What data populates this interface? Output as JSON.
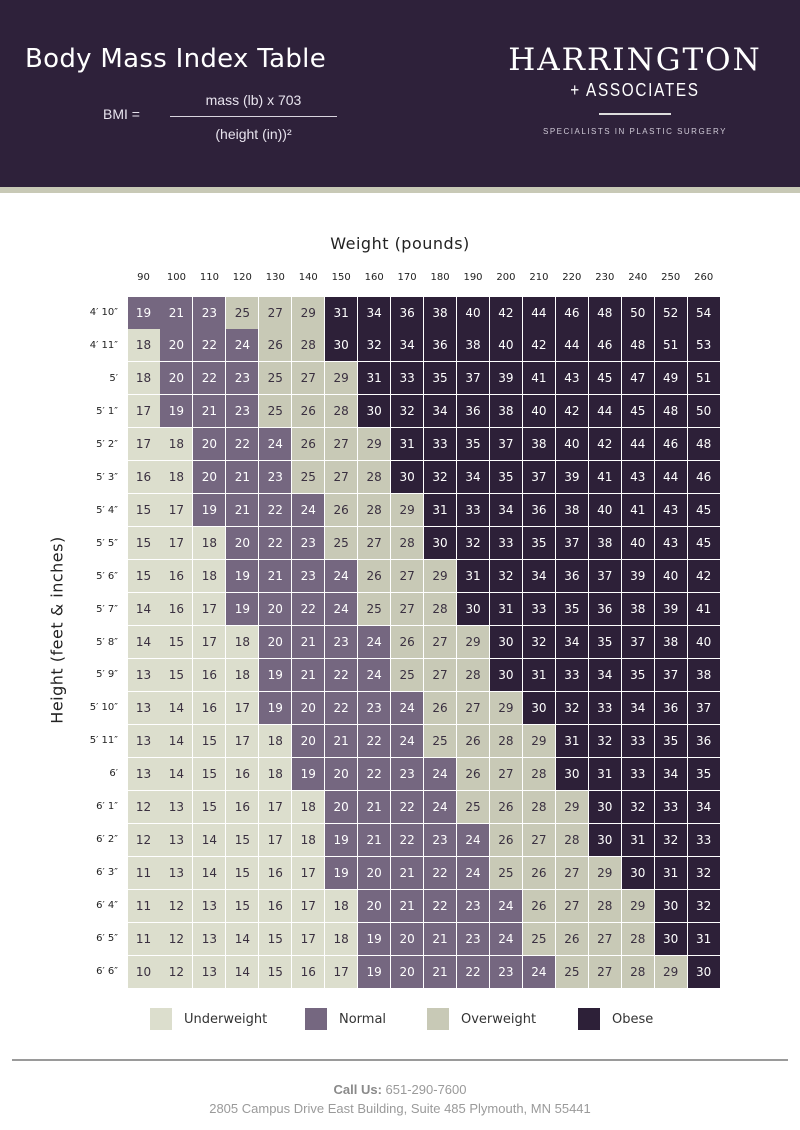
{
  "header": {
    "title": "Body Mass Index Table",
    "formula": {
      "lhs": "BMI =",
      "numerator": "mass (lb) x 703",
      "denominator": "(height (in))²"
    },
    "logo": {
      "name": "HARRINGTON",
      "sub": "+ ASSOCIATES",
      "tagline": "SPECIALISTS IN PLASTIC SURGERY"
    }
  },
  "axes": {
    "x_title": "Weight (pounds)",
    "y_title": "Height (feet & inches)"
  },
  "colors": {
    "underweight": "#dcdecd",
    "normal": "#756780",
    "overweight": "#c8c9b6",
    "obese": "#2d2038",
    "header": "#2e213a"
  },
  "chart_data": {
    "type": "table",
    "title": "Body Mass Index Table",
    "xlabel": "Weight (pounds)",
    "ylabel": "Height (feet & inches)",
    "weights": [
      "90",
      "100",
      "110",
      "120",
      "130",
      "140",
      "150",
      "160",
      "170",
      "180",
      "190",
      "200",
      "210",
      "220",
      "230",
      "240",
      "250",
      "260"
    ],
    "heights": [
      "4′ 10″",
      "4′ 11″",
      "5′",
      "5′ 1″",
      "5′ 2″",
      "5′ 3″",
      "5′ 4″",
      "5′ 5″",
      "5′ 6″",
      "5′ 7″",
      "5′ 8″",
      "5′ 9″",
      "5′ 10″",
      "5′ 11″",
      "6′",
      "6′ 1″",
      "6′ 2″",
      "6′ 3″",
      "6′ 4″",
      "6′ 5″",
      "6′ 6″"
    ],
    "values": [
      [
        19,
        21,
        23,
        25,
        27,
        29,
        31,
        34,
        36,
        38,
        40,
        42,
        44,
        46,
        48,
        50,
        52,
        54
      ],
      [
        18,
        20,
        22,
        24,
        26,
        28,
        30,
        32,
        34,
        36,
        38,
        40,
        42,
        44,
        46,
        48,
        51,
        53
      ],
      [
        18,
        20,
        22,
        23,
        25,
        27,
        29,
        31,
        33,
        35,
        37,
        39,
        41,
        43,
        45,
        47,
        49,
        51
      ],
      [
        17,
        19,
        21,
        23,
        25,
        26,
        28,
        30,
        32,
        34,
        36,
        38,
        40,
        42,
        44,
        45,
        48,
        50
      ],
      [
        17,
        18,
        20,
        22,
        24,
        26,
        27,
        29,
        31,
        33,
        35,
        37,
        38,
        40,
        42,
        44,
        46,
        48
      ],
      [
        16,
        18,
        20,
        21,
        23,
        25,
        27,
        28,
        30,
        32,
        34,
        35,
        37,
        39,
        41,
        43,
        44,
        46
      ],
      [
        15,
        17,
        19,
        21,
        22,
        24,
        26,
        28,
        29,
        31,
        33,
        34,
        36,
        38,
        40,
        41,
        43,
        45
      ],
      [
        15,
        17,
        18,
        20,
        22,
        23,
        25,
        27,
        28,
        30,
        32,
        33,
        35,
        37,
        38,
        40,
        43,
        45
      ],
      [
        15,
        16,
        18,
        19,
        21,
        23,
        24,
        26,
        27,
        29,
        31,
        32,
        34,
        36,
        37,
        39,
        40,
        42
      ],
      [
        14,
        16,
        17,
        19,
        20,
        22,
        24,
        25,
        27,
        28,
        30,
        31,
        33,
        35,
        36,
        38,
        39,
        41
      ],
      [
        14,
        15,
        17,
        18,
        20,
        21,
        23,
        24,
        26,
        27,
        29,
        30,
        32,
        34,
        35,
        37,
        38,
        40
      ],
      [
        13,
        15,
        16,
        18,
        19,
        21,
        22,
        24,
        25,
        27,
        28,
        30,
        31,
        33,
        34,
        35,
        37,
        38
      ],
      [
        13,
        14,
        16,
        17,
        19,
        20,
        22,
        23,
        24,
        26,
        27,
        29,
        30,
        32,
        33,
        34,
        36,
        37
      ],
      [
        13,
        14,
        15,
        17,
        18,
        20,
        21,
        22,
        24,
        25,
        26,
        28,
        29,
        31,
        32,
        33,
        35,
        36
      ],
      [
        13,
        14,
        15,
        16,
        18,
        19,
        20,
        22,
        23,
        24,
        26,
        27,
        28,
        30,
        31,
        33,
        34,
        35
      ],
      [
        12,
        13,
        15,
        16,
        17,
        18,
        20,
        21,
        22,
        24,
        25,
        26,
        28,
        29,
        30,
        32,
        33,
        34
      ],
      [
        12,
        13,
        14,
        15,
        17,
        18,
        19,
        21,
        22,
        23,
        24,
        26,
        27,
        28,
        30,
        31,
        32,
        33
      ],
      [
        11,
        13,
        14,
        15,
        16,
        17,
        19,
        20,
        21,
        22,
        24,
        25,
        26,
        27,
        29,
        30,
        31,
        32
      ],
      [
        11,
        12,
        13,
        15,
        16,
        17,
        18,
        20,
        21,
        22,
        23,
        24,
        26,
        27,
        28,
        29,
        30,
        32
      ],
      [
        11,
        12,
        13,
        14,
        15,
        17,
        18,
        19,
        20,
        21,
        23,
        24,
        25,
        26,
        27,
        28,
        30,
        31
      ],
      [
        10,
        12,
        13,
        14,
        15,
        16,
        17,
        19,
        20,
        21,
        22,
        23,
        24,
        25,
        27,
        28,
        29,
        30
      ]
    ],
    "categories": [
      "Underweight",
      "Normal",
      "Overweight",
      "Obese"
    ]
  },
  "legend": [
    "Underweight",
    "Normal",
    "Overweight",
    "Obese"
  ],
  "footer": {
    "call_label": "Call Us:",
    "phone": "651-290-7600",
    "address": "2805 Campus Drive East Building, Suite 485  Plymouth, MN 55441"
  }
}
